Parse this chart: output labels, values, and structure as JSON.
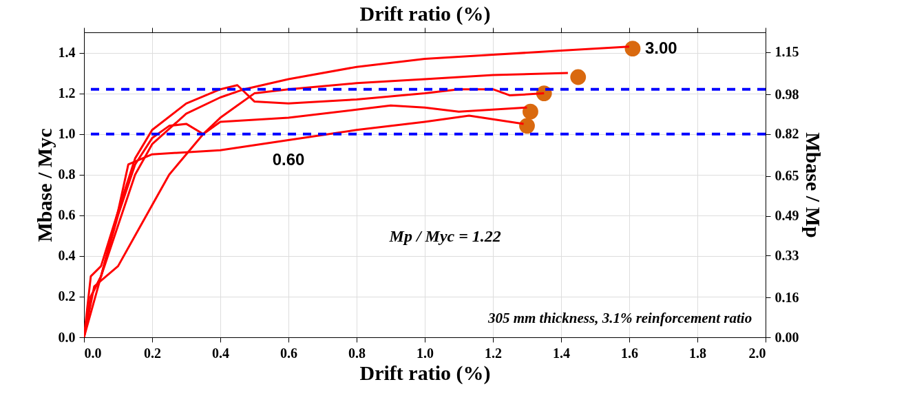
{
  "chart_data": {
    "type": "line",
    "xlabel": "Drift ratio (%)",
    "x2label": "Drift ratio (%)",
    "ylabel": "Mbase / Myc",
    "y2label": "Mbase / Mp",
    "xlim": [
      0,
      2
    ],
    "ylim": [
      0,
      1.5
    ],
    "y2lim": [
      0,
      1.23
    ],
    "xticks": [
      {
        "value": 0,
        "label": "0.0"
      },
      {
        "value": 0.2,
        "label": "0.2"
      },
      {
        "value": 0.4,
        "label": "0.4"
      },
      {
        "value": 0.6,
        "label": "0.6"
      },
      {
        "value": 0.8,
        "label": "0.8"
      },
      {
        "value": 1.0,
        "label": "1.0"
      },
      {
        "value": 1.2,
        "label": "1.2"
      },
      {
        "value": 1.4,
        "label": "1.4"
      },
      {
        "value": 1.6,
        "label": "1.6"
      },
      {
        "value": 1.8,
        "label": "1.8"
      },
      {
        "value": 2.0,
        "label": "2.0"
      }
    ],
    "yticks": [
      {
        "value": 0,
        "label": "0.0"
      },
      {
        "value": 0.2,
        "label": "0.2"
      },
      {
        "value": 0.4,
        "label": "0.4"
      },
      {
        "value": 0.6,
        "label": "0.6"
      },
      {
        "value": 0.8,
        "label": "0.8"
      },
      {
        "value": 1.0,
        "label": "1.0"
      },
      {
        "value": 1.2,
        "label": "1.2"
      },
      {
        "value": 1.4,
        "label": "1.4"
      }
    ],
    "y2ticks": [
      {
        "value": 0,
        "label": "0.00"
      },
      {
        "value": 0.16,
        "label": "0.16"
      },
      {
        "value": 0.33,
        "label": "0.33"
      },
      {
        "value": 0.49,
        "label": "0.49"
      },
      {
        "value": 0.65,
        "label": "0.65"
      },
      {
        "value": 0.82,
        "label": "0.82"
      },
      {
        "value": 0.98,
        "label": "0.98"
      },
      {
        "value": 1.15,
        "label": "1.15"
      }
    ],
    "grid": true,
    "line_style": "solid",
    "series": [
      {
        "color": "#ff0000",
        "x": [
          0,
          0.02,
          0.05,
          0.1,
          0.15,
          0.2,
          0.3,
          0.4,
          0.47,
          0.6,
          0.8,
          1.0,
          1.2,
          1.4,
          1.6
        ],
        "values": [
          0,
          0.2,
          0.3,
          0.55,
          0.8,
          0.95,
          1.1,
          1.18,
          1.22,
          1.27,
          1.33,
          1.37,
          1.39,
          1.41,
          1.43
        ]
      },
      {
        "color": "#ff0000",
        "x": [
          0,
          0.03,
          0.1,
          0.15,
          0.2,
          0.25,
          0.3,
          0.35,
          0.4,
          0.45,
          0.5,
          0.6,
          0.8,
          1.0,
          1.2,
          1.42
        ],
        "values": [
          0,
          0.25,
          0.35,
          0.5,
          0.65,
          0.8,
          0.9,
          1.0,
          1.08,
          1.14,
          1.2,
          1.22,
          1.25,
          1.27,
          1.29,
          1.3
        ]
      },
      {
        "color": "#ff0000",
        "x": [
          0,
          0.02,
          0.05,
          0.1,
          0.15,
          0.2,
          0.3,
          0.4,
          0.45,
          0.5,
          0.6,
          0.8,
          1.0,
          1.1,
          1.2,
          1.25,
          1.35
        ],
        "values": [
          0,
          0.3,
          0.35,
          0.62,
          0.88,
          1.02,
          1.15,
          1.22,
          1.24,
          1.16,
          1.15,
          1.17,
          1.2,
          1.22,
          1.22,
          1.19,
          1.2
        ]
      },
      {
        "color": "#ff0000",
        "x": [
          0,
          0.05,
          0.1,
          0.15,
          0.2,
          0.25,
          0.3,
          0.35,
          0.4,
          0.6,
          0.8,
          0.9,
          1.0,
          1.1,
          1.3
        ],
        "values": [
          0,
          0.3,
          0.6,
          0.85,
          0.98,
          1.04,
          1.05,
          1.0,
          1.06,
          1.08,
          1.12,
          1.14,
          1.13,
          1.11,
          1.13
        ]
      },
      {
        "color": "#ff0000",
        "x": [
          0,
          0.02,
          0.05,
          0.1,
          0.13,
          0.2,
          0.3,
          0.4,
          0.6,
          0.8,
          1.0,
          1.13,
          1.29
        ],
        "values": [
          0,
          0.2,
          0.3,
          0.62,
          0.85,
          0.9,
          0.91,
          0.92,
          0.97,
          1.02,
          1.06,
          1.09,
          1.05
        ]
      },
      {
        "type": "scatter",
        "marker": "circle",
        "color": "#d9690f",
        "x": [
          1.61,
          1.45,
          1.35,
          1.31,
          1.3
        ],
        "values": [
          1.42,
          1.28,
          1.2,
          1.11,
          1.04
        ]
      }
    ],
    "ref_lines": [
      {
        "axis": "y",
        "value": 1.0,
        "color": "#0000ff",
        "line_style": "dashed"
      },
      {
        "axis": "y",
        "value": 1.22,
        "color": "#0000ff",
        "line_style": "dashed"
      }
    ],
    "annotations": [
      "0.60",
      {
        "text": "3.00",
        "x": 1.61,
        "y": 1.42
      },
      "Mp / Myc = 1.22",
      "305 mm thickness, 3.1% reinforcement ratio"
    ]
  }
}
